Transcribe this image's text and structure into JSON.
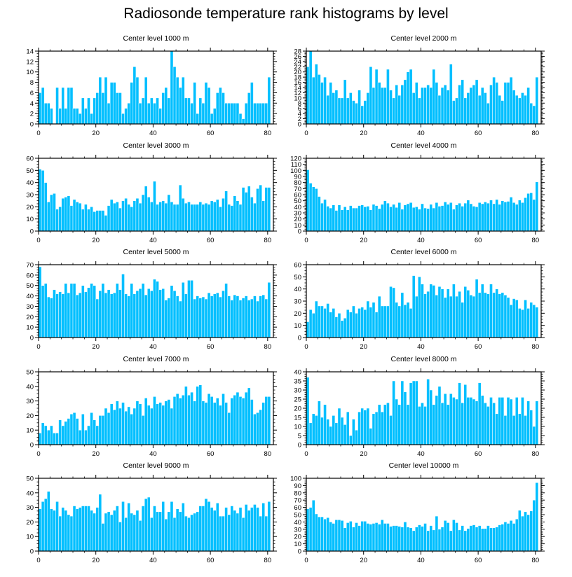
{
  "title": "Radiosonde temperature rank histograms by level",
  "colors": {
    "bar": "#00BFFF",
    "bar_edge": "#3a8fc8",
    "axis": "#000000"
  },
  "chart_data": [
    {
      "type": "bar",
      "title": "Center level 1000 m",
      "xlim": [
        0,
        82
      ],
      "ylim": [
        0,
        14
      ],
      "xticks": [
        0,
        20,
        40,
        60,
        80
      ],
      "yticks": [
        0,
        2,
        4,
        6,
        8,
        10,
        12,
        14
      ],
      "values": [
        6,
        7,
        4,
        4,
        3,
        0,
        7,
        3,
        7,
        3,
        7,
        7,
        3,
        3,
        2,
        5,
        3,
        5,
        2,
        5,
        6,
        9,
        6,
        9,
        4,
        8,
        8,
        6,
        6,
        2,
        3,
        4,
        8,
        11,
        9,
        4,
        5,
        9,
        4,
        5,
        4,
        5,
        3,
        6,
        7,
        5,
        14,
        11,
        9,
        7,
        9,
        5,
        5,
        4,
        8,
        2,
        5,
        4,
        8,
        7,
        2,
        3,
        6,
        7,
        6,
        4,
        4,
        4,
        4,
        4,
        2,
        1,
        4,
        6,
        8,
        4,
        4,
        4,
        4,
        4,
        9
      ],
      "xlabel": "",
      "ylabel": ""
    },
    {
      "type": "bar",
      "title": "Center level 2000 m",
      "xlim": [
        0,
        82
      ],
      "ylim": [
        0,
        28
      ],
      "xticks": [
        0,
        20,
        40,
        60,
        80
      ],
      "yticks": [
        0,
        2,
        4,
        6,
        8,
        10,
        12,
        14,
        16,
        18,
        20,
        22,
        24,
        26,
        28
      ],
      "values": [
        22,
        28,
        18,
        23,
        19,
        16,
        18,
        11,
        16,
        12,
        13,
        10,
        10,
        17,
        10,
        12,
        9,
        8,
        13,
        7,
        9,
        12,
        22,
        14,
        21,
        16,
        14,
        14,
        21,
        13,
        10,
        15,
        11,
        15,
        17,
        20,
        21,
        12,
        16,
        10,
        14,
        14,
        15,
        14,
        21,
        16,
        11,
        14,
        15,
        13,
        23,
        9,
        10,
        15,
        17,
        10,
        12,
        14,
        15,
        17,
        11,
        14,
        12,
        8,
        15,
        18,
        16,
        11,
        9,
        16,
        16,
        18,
        13,
        11,
        10,
        12,
        11,
        14,
        8,
        7,
        18
      ],
      "xlabel": "",
      "ylabel": ""
    },
    {
      "type": "bar",
      "title": "Center level 3000 m",
      "xlim": [
        0,
        82
      ],
      "ylim": [
        0,
        60
      ],
      "xticks": [
        0,
        20,
        40,
        60,
        80
      ],
      "yticks": [
        0,
        10,
        20,
        30,
        40,
        50,
        60
      ],
      "values": [
        51,
        50,
        40,
        24,
        30,
        31,
        18,
        20,
        27,
        28,
        29,
        21,
        26,
        24,
        23,
        18,
        22,
        18,
        20,
        16,
        17,
        17,
        17,
        13,
        21,
        26,
        23,
        24,
        19,
        25,
        27,
        22,
        20,
        25,
        27,
        23,
        30,
        37,
        28,
        24,
        41,
        22,
        24,
        25,
        23,
        30,
        24,
        22,
        22,
        38,
        27,
        23,
        24,
        22,
        22,
        22,
        24,
        22,
        23,
        22,
        25,
        24,
        26,
        20,
        27,
        33,
        22,
        21,
        29,
        25,
        22,
        36,
        32,
        37,
        28,
        23,
        35,
        38,
        25,
        36,
        36
      ],
      "xlabel": "",
      "ylabel": ""
    },
    {
      "type": "bar",
      "title": "Center level 4000 m",
      "xlim": [
        0,
        82
      ],
      "ylim": [
        0,
        120
      ],
      "xticks": [
        0,
        20,
        40,
        60,
        80
      ],
      "yticks": [
        0,
        10,
        20,
        30,
        40,
        50,
        60,
        70,
        80,
        90,
        100,
        110,
        120
      ],
      "values": [
        101,
        79,
        73,
        70,
        57,
        46,
        52,
        41,
        38,
        43,
        34,
        43,
        35,
        40,
        35,
        42,
        38,
        38,
        42,
        43,
        40,
        41,
        35,
        44,
        42,
        37,
        44,
        50,
        46,
        40,
        44,
        39,
        47,
        36,
        43,
        45,
        47,
        39,
        40,
        36,
        45,
        38,
        37,
        44,
        38,
        47,
        41,
        42,
        48,
        44,
        47,
        36,
        43,
        46,
        41,
        46,
        51,
        45,
        41,
        40,
        47,
        45,
        48,
        46,
        51,
        45,
        52,
        44,
        50,
        48,
        49,
        56,
        47,
        44,
        51,
        47,
        55,
        62,
        63,
        52,
        81
      ],
      "xlabel": "",
      "ylabel": ""
    },
    {
      "type": "bar",
      "title": "Center level 5000 m",
      "xlim": [
        0,
        82
      ],
      "ylim": [
        0,
        70
      ],
      "xticks": [
        0,
        20,
        40,
        60,
        80
      ],
      "yticks": [
        0,
        10,
        20,
        30,
        40,
        50,
        60,
        70
      ],
      "values": [
        68,
        50,
        52,
        39,
        38,
        46,
        42,
        44,
        42,
        52,
        43,
        52,
        52,
        41,
        43,
        50,
        44,
        48,
        52,
        50,
        37,
        45,
        52,
        43,
        46,
        42,
        43,
        52,
        46,
        61,
        42,
        40,
        52,
        42,
        45,
        47,
        52,
        41,
        47,
        45,
        56,
        54,
        46,
        47,
        36,
        38,
        50,
        45,
        40,
        35,
        53,
        42,
        55,
        55,
        37,
        40,
        38,
        39,
        37,
        43,
        40,
        42,
        43,
        39,
        45,
        52,
        40,
        36,
        41,
        40,
        36,
        38,
        40,
        36,
        37,
        40,
        35,
        40,
        41,
        37,
        53
      ],
      "xlabel": "",
      "ylabel": ""
    },
    {
      "type": "bar",
      "title": "Center level 6000 m",
      "xlim": [
        0,
        82
      ],
      "ylim": [
        0,
        60
      ],
      "xticks": [
        0,
        20,
        40,
        60,
        80
      ],
      "yticks": [
        0,
        10,
        20,
        30,
        40,
        50,
        60
      ],
      "values": [
        13,
        23,
        20,
        30,
        26,
        26,
        24,
        28,
        21,
        24,
        17,
        20,
        14,
        16,
        23,
        21,
        26,
        20,
        24,
        25,
        23,
        30,
        25,
        29,
        21,
        34,
        26,
        26,
        26,
        42,
        41,
        29,
        26,
        37,
        27,
        29,
        24,
        51,
        34,
        50,
        44,
        36,
        38,
        44,
        43,
        35,
        42,
        40,
        33,
        40,
        34,
        44,
        34,
        38,
        29,
        42,
        39,
        35,
        34,
        48,
        37,
        44,
        37,
        36,
        44,
        37,
        40,
        36,
        37,
        35,
        33,
        27,
        32,
        31,
        24,
        23,
        31,
        24,
        29,
        27,
        25
      ],
      "xlabel": "",
      "ylabel": ""
    },
    {
      "type": "bar",
      "title": "Center level 7000 m",
      "xlim": [
        0,
        82
      ],
      "ylim": [
        0,
        50
      ],
      "xticks": [
        0,
        20,
        40,
        60,
        80
      ],
      "yticks": [
        0,
        10,
        20,
        30,
        40,
        50
      ],
      "values": [
        8,
        15,
        13,
        10,
        13,
        8,
        8,
        17,
        13,
        16,
        18,
        21,
        22,
        18,
        10,
        21,
        10,
        13,
        22,
        17,
        13,
        20,
        20,
        25,
        22,
        28,
        24,
        30,
        25,
        29,
        23,
        26,
        21,
        25,
        30,
        28,
        20,
        32,
        27,
        25,
        33,
        28,
        29,
        27,
        30,
        31,
        25,
        33,
        35,
        32,
        34,
        40,
        34,
        36,
        30,
        40,
        41,
        30,
        29,
        35,
        33,
        29,
        32,
        27,
        35,
        29,
        22,
        32,
        34,
        36,
        33,
        32,
        36,
        39,
        31,
        21,
        22,
        24,
        29,
        33,
        33
      ],
      "xlabel": "",
      "ylabel": ""
    },
    {
      "type": "bar",
      "title": "Center level 8000 m",
      "xlim": [
        0,
        82
      ],
      "ylim": [
        0,
        40
      ],
      "xticks": [
        0,
        20,
        40,
        60,
        80
      ],
      "yticks": [
        0,
        5,
        10,
        15,
        20,
        25,
        30,
        35,
        40
      ],
      "values": [
        37,
        12,
        17,
        16,
        24,
        15,
        22,
        14,
        10,
        16,
        12,
        20,
        15,
        11,
        18,
        5,
        14,
        8,
        18,
        20,
        19,
        20,
        9,
        17,
        18,
        22,
        18,
        22,
        23,
        16,
        35,
        25,
        22,
        35,
        29,
        22,
        34,
        35,
        35,
        21,
        23,
        21,
        36,
        30,
        22,
        27,
        32,
        23,
        28,
        22,
        28,
        26,
        25,
        34,
        23,
        33,
        26,
        26,
        25,
        24,
        34,
        27,
        23,
        21,
        26,
        23,
        17,
        26,
        26,
        16,
        26,
        25,
        16,
        26,
        17,
        26,
        16,
        24,
        19,
        10,
        24
      ],
      "xlabel": "",
      "ylabel": ""
    },
    {
      "type": "bar",
      "title": "Center level 9000 m",
      "xlim": [
        0,
        82
      ],
      "ylim": [
        0,
        50
      ],
      "xticks": [
        0,
        20,
        40,
        60,
        80
      ],
      "yticks": [
        0,
        10,
        20,
        30,
        40,
        50
      ],
      "values": [
        29,
        34,
        36,
        41,
        29,
        28,
        34,
        24,
        30,
        28,
        25,
        24,
        31,
        29,
        30,
        31,
        31,
        31,
        28,
        26,
        30,
        39,
        19,
        26,
        27,
        25,
        28,
        31,
        20,
        34,
        23,
        33,
        26,
        25,
        28,
        21,
        31,
        36,
        37,
        23,
        31,
        27,
        27,
        34,
        22,
        27,
        34,
        23,
        29,
        27,
        33,
        24,
        23,
        25,
        26,
        27,
        31,
        31,
        36,
        34,
        30,
        28,
        33,
        24,
        24,
        30,
        25,
        31,
        28,
        26,
        30,
        23,
        32,
        28,
        30,
        32,
        30,
        24,
        33,
        24,
        34
      ],
      "xlabel": "",
      "ylabel": ""
    },
    {
      "type": "bar",
      "title": "Center level 10000 m",
      "xlim": [
        0,
        82
      ],
      "ylim": [
        0,
        100
      ],
      "xticks": [
        0,
        20,
        40,
        60,
        80
      ],
      "yticks": [
        0,
        10,
        20,
        30,
        40,
        50,
        60,
        70,
        80,
        90,
        100
      ],
      "values": [
        58,
        60,
        70,
        51,
        47,
        47,
        44,
        46,
        40,
        38,
        43,
        43,
        42,
        32,
        39,
        41,
        33,
        39,
        35,
        41,
        41,
        38,
        37,
        38,
        39,
        37,
        43,
        38,
        38,
        34,
        35,
        35,
        34,
        33,
        40,
        33,
        32,
        28,
        33,
        36,
        34,
        38,
        28,
        35,
        29,
        48,
        30,
        33,
        42,
        39,
        28,
        43,
        39,
        29,
        35,
        28,
        31,
        35,
        36,
        33,
        35,
        31,
        31,
        35,
        32,
        32,
        33,
        36,
        37,
        40,
        38,
        42,
        38,
        44,
        56,
        48,
        54,
        50,
        55,
        70,
        94
      ],
      "xlabel": "",
      "ylabel": ""
    }
  ]
}
